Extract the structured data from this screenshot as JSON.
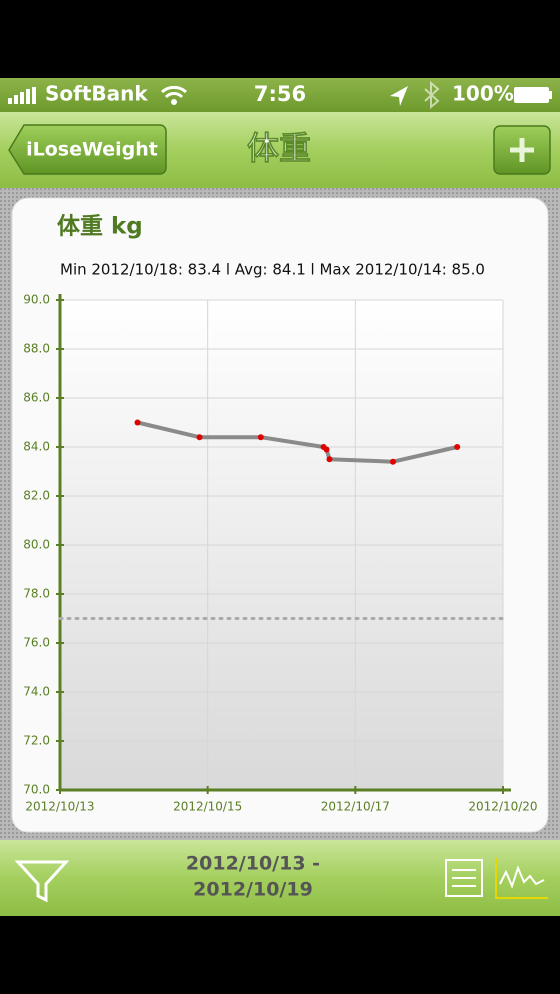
{
  "status_bar": {
    "carrier": "SoftBank",
    "time": "7:56",
    "battery": "100%"
  },
  "nav_bar": {
    "back": "iLoseWeight",
    "title": "体重"
  },
  "chart_data": {
    "type": "line",
    "title": "体重 kg",
    "subtitle": "Min 2012/10/18: 83.4   l   Avg: 84.1   l   Max 2012/10/14: 85.0",
    "x": [
      1.05,
      1.89,
      2.72,
      3.57,
      3.61,
      3.65,
      4.51,
      5.38
    ],
    "series": [
      {
        "color": "#8a8a8a",
        "marker_color": "#e00000",
        "values": [
          85.0,
          84.4,
          84.4,
          84.0,
          83.9,
          83.5,
          83.4,
          84.0
        ]
      }
    ],
    "target": 77.0,
    "xlim": [
      0,
      6
    ],
    "xticks": [
      {
        "value": 0,
        "label": "2012/10/13"
      },
      {
        "value": 2,
        "label": "2012/10/15"
      },
      {
        "value": 4,
        "label": "2012/10/17"
      },
      {
        "value": 6,
        "label": "2012/10/20"
      }
    ],
    "ylim": [
      70,
      90
    ],
    "yticks": [
      {
        "value": 70,
        "label": "70.0"
      },
      {
        "value": 72,
        "label": "72.0"
      },
      {
        "value": 74,
        "label": "74.0"
      },
      {
        "value": 76,
        "label": "76.0"
      },
      {
        "value": 78,
        "label": "78.0"
      },
      {
        "value": 80,
        "label": "80.0"
      },
      {
        "value": 82,
        "label": "82.0"
      },
      {
        "value": 84,
        "label": "84.0"
      },
      {
        "value": 86,
        "label": "86.0"
      },
      {
        "value": 88,
        "label": "88.0"
      },
      {
        "value": 90,
        "label": "90.0"
      }
    ],
    "grid": true
  },
  "toolbar": {
    "range_start": "2012/10/13 -",
    "range_end": "2012/10/19"
  }
}
